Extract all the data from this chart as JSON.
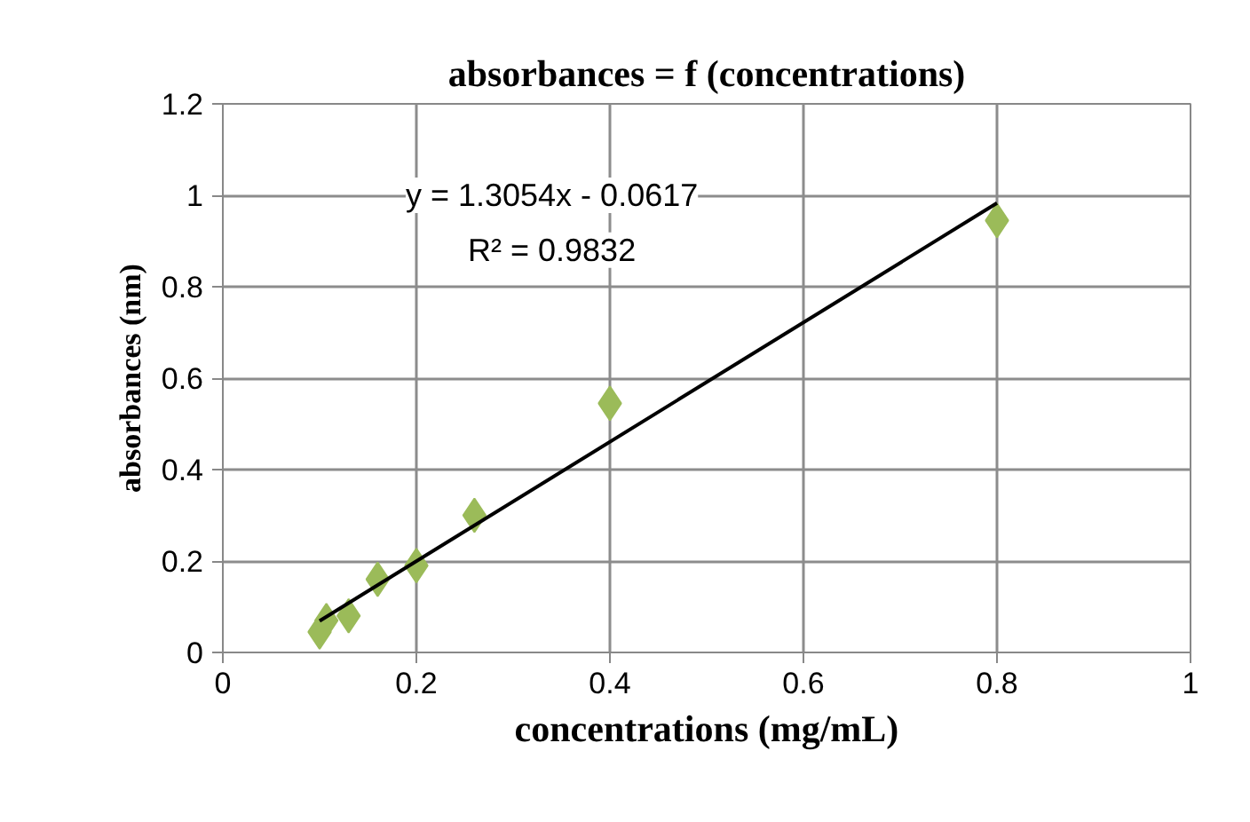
{
  "chart_data": {
    "type": "scatter",
    "title": "absorbances = f (concentrations)",
    "xlabel": "concentrations (mg/mL)",
    "ylabel": "absorbances (nm)",
    "series": [
      {
        "color": "#9bbb59",
        "x": [
          0.1,
          0.107,
          0.13,
          0.16,
          0.2,
          0.26,
          0.4,
          0.8
        ],
        "values": [
          0.045,
          0.07,
          0.08,
          0.16,
          0.19,
          0.3,
          0.545,
          0.945
        ]
      },
      {
        "type": "line",
        "marker": "none",
        "color": "#000000",
        "x": [
          0.1,
          0.8
        ],
        "values": [
          0.069,
          0.983
        ]
      }
    ],
    "annotations": [
      "y = 1.3054x - 0.0617",
      "R² = 0.9832"
    ],
    "xlim": [
      0,
      1
    ],
    "xticks": [
      0,
      0.2,
      0.4,
      0.6,
      0.8,
      1
    ],
    "ylim": [
      0,
      1.2
    ],
    "yticks": [
      0,
      0.2,
      0.4,
      0.6,
      0.8,
      1,
      1.2
    ],
    "grid": true,
    "marker": "diamond"
  }
}
